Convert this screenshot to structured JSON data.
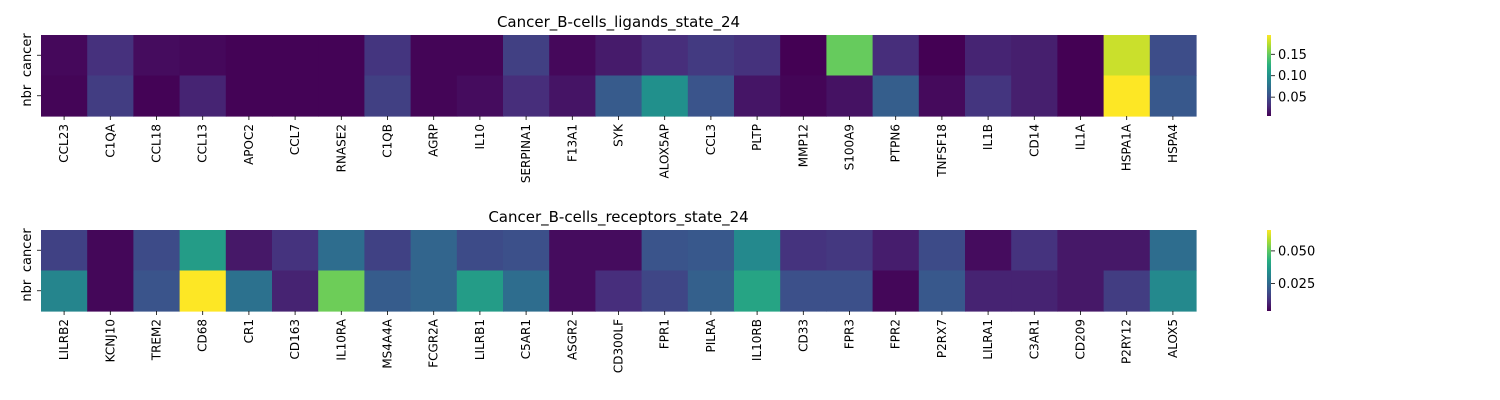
{
  "chart_data": [
    {
      "type": "heatmap",
      "title": "Cancer_B-cells_ligands_state_24",
      "rows": [
        "cancer",
        "nbr"
      ],
      "columns": [
        "CCL23",
        "C1QA",
        "CCL18",
        "CCL13",
        "APOC2",
        "CCL7",
        "RNASE2",
        "C1QB",
        "AGRP",
        "IL10",
        "SERPINA1",
        "F13A1",
        "SYK",
        "ALOX5AP",
        "CCL3",
        "PLTP",
        "MMP12",
        "S100A9",
        "PTPN6",
        "TNFSF18",
        "IL1B",
        "CD14",
        "IL1A",
        "HSPA1A",
        "HSPA4"
      ],
      "values": [
        [
          0.01,
          0.032,
          0.012,
          0.01,
          0.007,
          0.007,
          0.007,
          0.035,
          0.008,
          0.008,
          0.042,
          0.01,
          0.02,
          0.03,
          0.038,
          0.033,
          0.006,
          0.15,
          0.03,
          0.006,
          0.025,
          0.022,
          0.006,
          0.18,
          0.05
        ],
        [
          0.008,
          0.04,
          0.007,
          0.025,
          0.007,
          0.007,
          0.007,
          0.042,
          0.008,
          0.012,
          0.03,
          0.016,
          0.06,
          0.1,
          0.055,
          0.017,
          0.008,
          0.015,
          0.062,
          0.011,
          0.035,
          0.022,
          0.006,
          0.195,
          0.058
        ]
      ],
      "colorbar": {
        "ticks": [
          "0.05",
          "0.10",
          "0.15"
        ],
        "tick_values": [
          0.05,
          0.1,
          0.15
        ],
        "vmin": 0.006,
        "vmax": 0.195
      }
    },
    {
      "type": "heatmap",
      "title": "Cancer_B-cells_receptors_state_24",
      "rows": [
        "cancer",
        "nbr"
      ],
      "columns": [
        "LILRB2",
        "KCNJ10",
        "TREM2",
        "CD68",
        "CR1",
        "CD163",
        "IL10RA",
        "MS4A4A",
        "FCGR2A",
        "LILRB1",
        "C5AR1",
        "ASGR2",
        "CD300LF",
        "FPR1",
        "PILRA",
        "IL10RB",
        "CD33",
        "FPR3",
        "FPR2",
        "P2RX7",
        "LILRA1",
        "C3AR1",
        "CD209",
        "P2RY12",
        "ALOX5"
      ],
      "values": [
        [
          0.016,
          0.005,
          0.018,
          0.038,
          0.008,
          0.013,
          0.026,
          0.016,
          0.024,
          0.018,
          0.019,
          0.006,
          0.006,
          0.02,
          0.021,
          0.033,
          0.013,
          0.014,
          0.009,
          0.018,
          0.006,
          0.013,
          0.008,
          0.008,
          0.026
        ],
        [
          0.032,
          0.005,
          0.02,
          0.066,
          0.027,
          0.01,
          0.052,
          0.022,
          0.024,
          0.038,
          0.026,
          0.006,
          0.012,
          0.017,
          0.023,
          0.04,
          0.019,
          0.019,
          0.005,
          0.021,
          0.01,
          0.01,
          0.008,
          0.015,
          0.033
        ]
      ],
      "colorbar": {
        "ticks": [
          "0.025",
          "0.050"
        ],
        "tick_values": [
          0.025,
          0.05
        ],
        "vmin": 0.004,
        "vmax": 0.066
      }
    }
  ]
}
